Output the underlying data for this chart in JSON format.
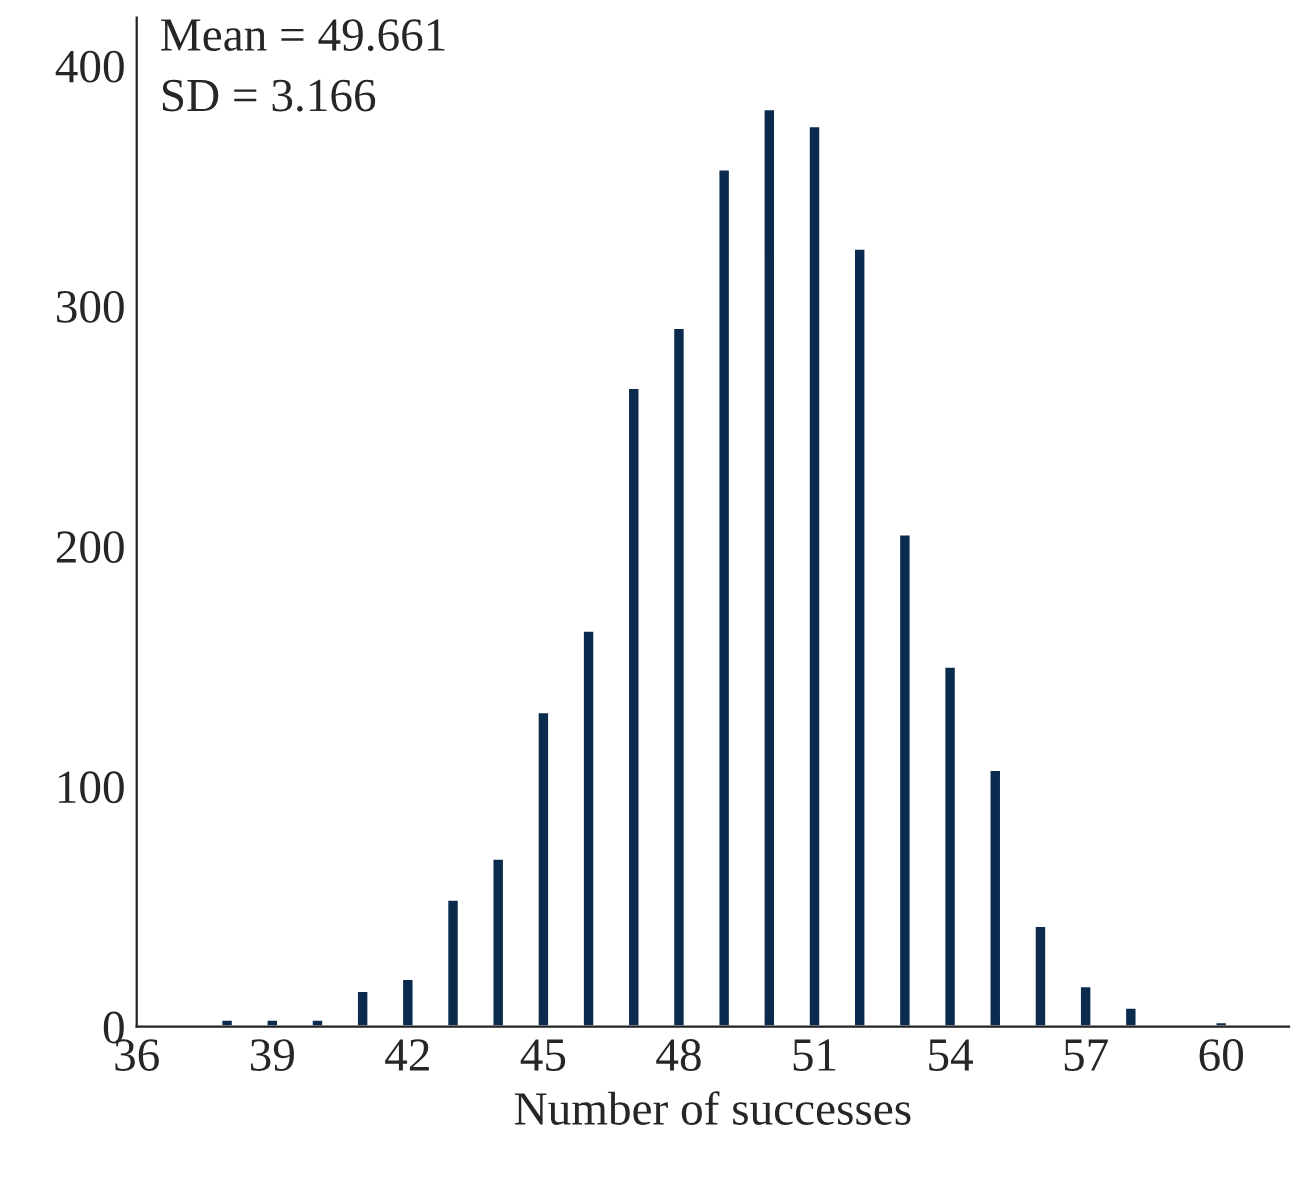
{
  "chart_data": {
    "type": "bar",
    "xlabel": "Number of successes",
    "x": [
      38,
      39,
      40,
      41,
      42,
      43,
      44,
      45,
      46,
      47,
      48,
      49,
      50,
      51,
      52,
      53,
      54,
      55,
      56,
      57,
      58,
      60
    ],
    "values": [
      3,
      3,
      3,
      15,
      20,
      53,
      70,
      131,
      165,
      266,
      291,
      357,
      382,
      375,
      324,
      205,
      150,
      107,
      42,
      17,
      8,
      2
    ],
    "color": "#0a2b4e",
    "xlim": [
      36,
      61.5
    ],
    "xticks": [
      36,
      39,
      42,
      45,
      48,
      51,
      54,
      57,
      60
    ],
    "ylim": [
      0,
      420
    ],
    "yticks": [
      0,
      100,
      200,
      300,
      400
    ],
    "annotations": [
      "Mean = 49.661",
      "SD = 3.166"
    ]
  }
}
